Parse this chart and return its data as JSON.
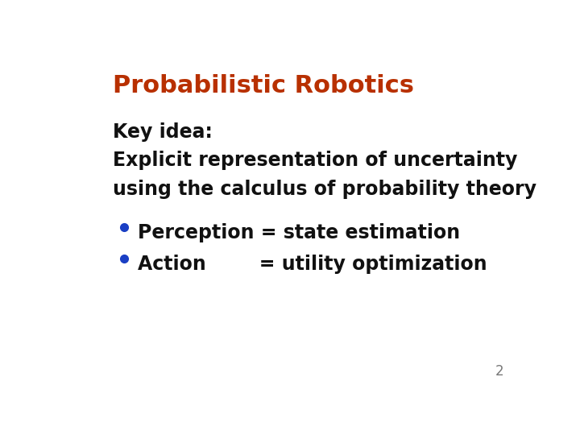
{
  "title": "Probabilistic Robotics",
  "title_color": "#b83000",
  "title_fontsize": 22,
  "body_line1": "Key idea:",
  "body_line2": "Explicit representation of uncertainty",
  "body_line3": "using the calculus of probability theory",
  "body_color": "#111111",
  "body_fontsize": 17,
  "bullet_color": "#1a3fc4",
  "bullet1_text": "Perception = state estimation",
  "bullet2_text": "Action        = utility optimization",
  "bullet_fontsize": 17,
  "page_number": "2",
  "page_number_color": "#777777",
  "page_number_fontsize": 12,
  "background_color": "#ffffff"
}
